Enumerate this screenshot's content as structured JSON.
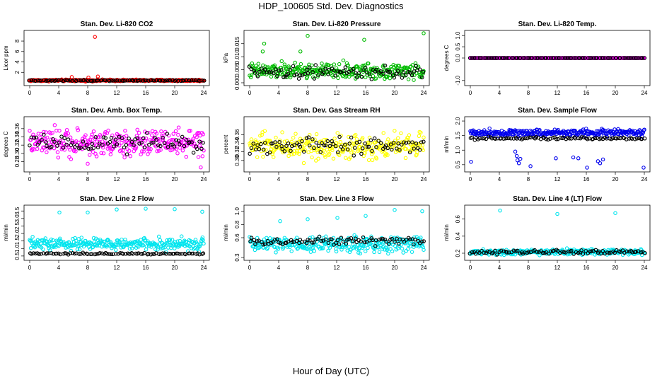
{
  "page": {
    "title": "HDP_100605  Std. Dev. Diagnostics",
    "xaxis_title": "Hour of Day (UTC)"
  },
  "chart_data": [
    {
      "type": "scatter",
      "title": "Stan. Dev. Li-820 CO2",
      "ylabel": "Licor ppm",
      "xlim": [
        0,
        24
      ],
      "ylim": [
        0,
        9.5
      ],
      "xticks": [
        "0",
        "4",
        "8",
        "12",
        "16",
        "20",
        "24"
      ],
      "yticks": [
        "2",
        "4",
        "6",
        "8"
      ],
      "ytick_values": [
        2,
        4,
        6,
        8
      ],
      "band": {
        "primary_center": 0.45,
        "primary_spread": 0.25,
        "secondary_center": 0.45,
        "secondary_spread": 0.15
      },
      "colors": {
        "primary": "#ff0000",
        "secondary": "#000000"
      },
      "outliers": [
        {
          "x": 9.0,
          "y": 8.8
        },
        {
          "x": 5.8,
          "y": 1.1
        },
        {
          "x": 9.4,
          "y": 1.2
        },
        {
          "x": 8.1,
          "y": 1.0
        }
      ]
    },
    {
      "type": "scatter",
      "title": "Stan. Dev. Li-820 Pressure",
      "ylabel": "kPa",
      "xlim": [
        0,
        24
      ],
      "ylim": [
        0,
        0.019
      ],
      "xticks": [
        "0",
        "4",
        "8",
        "12",
        "16",
        "20",
        "24"
      ],
      "yticks": [
        "0.000",
        "0.005",
        "0.010",
        "0.015"
      ],
      "ytick_values": [
        0,
        0.005,
        0.01,
        0.015
      ],
      "band": {
        "primary_center": 0.0045,
        "primary_spread": 0.0045,
        "secondary_center": 0.004,
        "secondary_spread": 0.003
      },
      "colors": {
        "primary": "#00bb00",
        "secondary": "#000000"
      },
      "outliers": [
        {
          "x": 2.0,
          "y": 0.015
        },
        {
          "x": 8.0,
          "y": 0.018
        },
        {
          "x": 15.8,
          "y": 0.0165
        },
        {
          "x": 24.0,
          "y": 0.019
        },
        {
          "x": 7.0,
          "y": 0.012
        },
        {
          "x": 1.8,
          "y": 0.012
        }
      ]
    },
    {
      "type": "scatter",
      "title": "Stan. Dev. Li-820 Temp.",
      "ylabel": "degrees C",
      "xlim": [
        0,
        24
      ],
      "ylim": [
        -1.1,
        1.1
      ],
      "xticks": [
        "0",
        "4",
        "8",
        "12",
        "16",
        "20",
        "24"
      ],
      "yticks": [
        "-1.0",
        "0.0",
        "0.5",
        "1.0"
      ],
      "ytick_values": [
        -1,
        0,
        0.5,
        1
      ],
      "band": {
        "primary_center": 0.0,
        "primary_spread": 0.0,
        "secondary_center": 0.0,
        "secondary_spread": 0.0
      },
      "colors": {
        "primary": "#ff00ff",
        "secondary": "#000000"
      },
      "outliers": []
    },
    {
      "type": "scatter",
      "title": "Stan. Dev. Amb. Box Temp.",
      "ylabel": "degrees C",
      "xlim": [
        0,
        24
      ],
      "ylim": [
        0.262,
        0.382
      ],
      "xticks": [
        "0",
        "4",
        "8",
        "12",
        "16",
        "20",
        "24"
      ],
      "yticks": [
        "0.28",
        "0.30",
        "0.32",
        "0.34",
        "0.36"
      ],
      "ytick_values": [
        0.28,
        0.3,
        0.32,
        0.34,
        0.36
      ],
      "band": {
        "primary_center": 0.325,
        "primary_spread": 0.048,
        "secondary_center": 0.325,
        "secondary_spread": 0.03
      },
      "colors": {
        "primary": "#ff00ff",
        "secondary": "#000000"
      },
      "outliers": [
        {
          "x": 23.6,
          "y": 0.266
        },
        {
          "x": 8.0,
          "y": 0.275
        }
      ]
    },
    {
      "type": "scatter",
      "title": "Stan. Dev. Gas Stream RH",
      "ylabel": "percent",
      "xlim": [
        0,
        24
      ],
      "ylim": [
        0.28,
        0.395
      ],
      "xticks": [
        "0",
        "4",
        "8",
        "12",
        "16",
        "20",
        "24"
      ],
      "yticks": [
        "0.30",
        "0.32",
        "0.34",
        "0.36"
      ],
      "ytick_values": [
        0.3,
        0.32,
        0.34,
        0.36
      ],
      "band": {
        "primary_center": 0.334,
        "primary_spread": 0.045,
        "secondary_center": 0.334,
        "secondary_spread": 0.028
      },
      "colors": {
        "primary": "#ffff00",
        "secondary": "#000000"
      },
      "outliers": []
    },
    {
      "type": "scatter",
      "title": "Stan. Dev. Sample Flow",
      "ylabel": "ml/min",
      "xlim": [
        0,
        24
      ],
      "ylim": [
        0.35,
        2.05
      ],
      "xticks": [
        "0",
        "4",
        "8",
        "12",
        "16",
        "20",
        "24"
      ],
      "yticks": [
        "0.5",
        "1.0",
        "1.5",
        "2.0"
      ],
      "ytick_values": [
        0.5,
        1,
        1.5,
        2
      ],
      "band": {
        "primary_center": 1.6,
        "primary_spread": 0.18,
        "secondary_center": 1.4,
        "secondary_spread": 0.07
      },
      "colors": {
        "primary": "#0000ee",
        "secondary": "#000000"
      },
      "outliers": [
        {
          "x": 0.1,
          "y": 0.6
        },
        {
          "x": 6.2,
          "y": 0.95
        },
        {
          "x": 6.4,
          "y": 0.8
        },
        {
          "x": 6.5,
          "y": 0.65
        },
        {
          "x": 6.7,
          "y": 0.55
        },
        {
          "x": 6.9,
          "y": 0.7
        },
        {
          "x": 8.3,
          "y": 0.45
        },
        {
          "x": 11.8,
          "y": 0.72
        },
        {
          "x": 14.2,
          "y": 0.75
        },
        {
          "x": 14.9,
          "y": 0.72
        },
        {
          "x": 16.1,
          "y": 0.4
        },
        {
          "x": 17.6,
          "y": 0.62
        },
        {
          "x": 17.9,
          "y": 0.55
        },
        {
          "x": 18.3,
          "y": 0.68
        },
        {
          "x": 23.9,
          "y": 0.4
        }
      ]
    },
    {
      "type": "scatter",
      "title": "Stan. Dev. Line 2 Flow",
      "ylabel": "ml/min",
      "xlim": [
        0,
        24
      ],
      "ylim": [
        0.4,
        3.7
      ],
      "xticks": [
        "0",
        "4",
        "8",
        "12",
        "16",
        "20",
        "24"
      ],
      "yticks": [
        "0.5",
        "1.0",
        "1.5",
        "2.0",
        "2.5",
        "3.0",
        "3.5"
      ],
      "ytick_values": [
        0.5,
        1,
        1.5,
        2,
        2.5,
        3,
        3.5
      ],
      "band": {
        "primary_center": 1.3,
        "primary_spread": 0.6,
        "secondary_center": 0.65,
        "secondary_spread": 0.08
      },
      "colors": {
        "primary": "#00e5ee",
        "secondary": "#000000"
      },
      "outliers": [
        {
          "x": 4.1,
          "y": 3.4
        },
        {
          "x": 8.0,
          "y": 3.4
        },
        {
          "x": 12.0,
          "y": 3.6
        },
        {
          "x": 16.0,
          "y": 3.65
        },
        {
          "x": 20.0,
          "y": 3.62
        },
        {
          "x": 23.8,
          "y": 3.45
        }
      ]
    },
    {
      "type": "scatter",
      "title": "Stan. Dev. Line 3 Flow",
      "ylabel": "ml/min",
      "xlim": [
        0,
        24
      ],
      "ylim": [
        0.3,
        1.05
      ],
      "xticks": [
        "0",
        "4",
        "8",
        "12",
        "16",
        "20",
        "24"
      ],
      "yticks": [
        "0.3",
        "0.6",
        "0.8",
        "1.0"
      ],
      "ytick_values": [
        0.3,
        0.6,
        0.8,
        1.0
      ],
      "band": {
        "primary_center": 0.5,
        "primary_spread": 0.18,
        "secondary_center": 0.55,
        "secondary_spread": 0.09
      },
      "colors": {
        "primary": "#00e5ee",
        "secondary": "#000000"
      },
      "outliers": [
        {
          "x": 4.2,
          "y": 0.85
        },
        {
          "x": 8.0,
          "y": 0.88
        },
        {
          "x": 12.1,
          "y": 0.9
        },
        {
          "x": 16.0,
          "y": 0.93
        },
        {
          "x": 20.0,
          "y": 1.02
        },
        {
          "x": 23.8,
          "y": 1.0
        }
      ]
    },
    {
      "type": "scatter",
      "title": "Stan. Dev. Line 4 (LT) Flow",
      "ylabel": "ml/min",
      "xlim": [
        0,
        24
      ],
      "ylim": [
        0.15,
        0.73
      ],
      "xticks": [
        "0",
        "4",
        "8",
        "12",
        "16",
        "20",
        "24"
      ],
      "yticks": [
        "0.2",
        "0.4",
        "0.6"
      ],
      "ytick_values": [
        0.2,
        0.4,
        0.6
      ],
      "band": {
        "primary_center": 0.215,
        "primary_spread": 0.045,
        "secondary_center": 0.215,
        "secondary_spread": 0.035
      },
      "colors": {
        "primary": "#00e5ee",
        "secondary": "#000000"
      },
      "outliers": [
        {
          "x": 4.1,
          "y": 0.7
        },
        {
          "x": 12.0,
          "y": 0.66
        },
        {
          "x": 20.0,
          "y": 0.67
        }
      ]
    }
  ]
}
